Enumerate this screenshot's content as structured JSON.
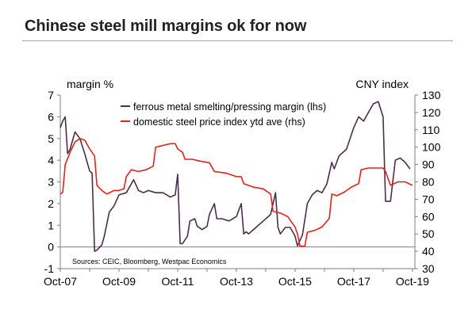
{
  "header": {
    "title": "Chinese steel mill margins ok for now"
  },
  "chart_data": {
    "type": "line",
    "title": "Chinese steel mill margins ok for now",
    "left_axis_label": "margin %",
    "right_axis_label": "CNY index",
    "left_ylim": [
      -1,
      7
    ],
    "right_ylim": [
      30,
      130
    ],
    "left_ticks": [
      "-1",
      "0",
      "1",
      "2",
      "3",
      "4",
      "5",
      "6",
      "7"
    ],
    "right_ticks": [
      "30",
      "40",
      "50",
      "60",
      "70",
      "80",
      "90",
      "100",
      "110",
      "120",
      "130"
    ],
    "x_range": [
      "2007-10",
      "2019-11"
    ],
    "x_tick_labels": [
      "Oct-07",
      "Oct-09",
      "Oct-11",
      "Oct-13",
      "Oct-15",
      "Oct-17",
      "Oct-19"
    ],
    "grid": false,
    "zero_line": true,
    "legend_position": "top-center",
    "source_note": "Sources: CEIC, Bloomberg, Westpac Economics",
    "colors": {
      "margin": "#4b2d4f",
      "price": "#e3221b",
      "axis": "#7f7f7f",
      "title": "#222222"
    },
    "series": [
      {
        "name": "ferrous metal smelting/pressing margin (lhs)",
        "axis": "left",
        "color": "#4b2d4f",
        "points": [
          [
            "2007-10",
            5.5
          ],
          [
            "2007-11",
            5.8
          ],
          [
            "2007-12",
            6.0
          ],
          [
            "2008-01",
            4.3
          ],
          [
            "2008-02",
            4.5
          ],
          [
            "2008-04",
            5.3
          ],
          [
            "2008-06",
            5.0
          ],
          [
            "2008-08",
            4.3
          ],
          [
            "2008-10",
            3.5
          ],
          [
            "2008-11",
            3.4
          ],
          [
            "2008-12",
            -0.2
          ],
          [
            "2009-01",
            -0.15
          ],
          [
            "2009-03",
            0.1
          ],
          [
            "2009-04",
            0.5
          ],
          [
            "2009-06",
            1.6
          ],
          [
            "2009-08",
            1.9
          ],
          [
            "2009-10",
            2.4
          ],
          [
            "2010-01",
            2.5
          ],
          [
            "2010-04",
            3.1
          ],
          [
            "2010-06",
            2.6
          ],
          [
            "2010-08",
            2.5
          ],
          [
            "2010-10",
            2.6
          ],
          [
            "2011-01",
            2.5
          ],
          [
            "2011-04",
            2.5
          ],
          [
            "2011-07",
            2.3
          ],
          [
            "2011-09",
            2.4
          ],
          [
            "2011-10",
            3.35
          ],
          [
            "2011-11",
            0.15
          ],
          [
            "2011-12",
            0.15
          ],
          [
            "2012-02",
            0.5
          ],
          [
            "2012-03",
            1.2
          ],
          [
            "2012-05",
            1.3
          ],
          [
            "2012-06",
            0.95
          ],
          [
            "2012-08",
            0.8
          ],
          [
            "2012-10",
            0.95
          ],
          [
            "2012-11",
            1.5
          ],
          [
            "2013-01",
            2.0
          ],
          [
            "2013-02",
            1.3
          ],
          [
            "2013-04",
            1.3
          ],
          [
            "2013-07",
            1.2
          ],
          [
            "2013-10",
            1.4
          ],
          [
            "2013-12",
            2.0
          ],
          [
            "2014-01",
            0.6
          ],
          [
            "2014-02",
            0.7
          ],
          [
            "2014-03",
            0.6
          ],
          [
            "2014-06",
            0.9
          ],
          [
            "2014-09",
            1.2
          ],
          [
            "2014-12",
            1.5
          ],
          [
            "2015-02",
            2.5
          ],
          [
            "2015-03",
            0.9
          ],
          [
            "2015-04",
            0.6
          ],
          [
            "2015-06",
            0.9
          ],
          [
            "2015-08",
            0.9
          ],
          [
            "2015-10",
            0.5
          ],
          [
            "2015-11",
            0.05
          ],
          [
            "2016-01",
            0.55
          ],
          [
            "2016-03",
            2.0
          ],
          [
            "2016-05",
            2.4
          ],
          [
            "2016-07",
            2.6
          ],
          [
            "2016-09",
            2.5
          ],
          [
            "2016-11",
            2.9
          ],
          [
            "2017-01",
            3.9
          ],
          [
            "2017-02",
            3.6
          ],
          [
            "2017-04",
            4.2
          ],
          [
            "2017-07",
            4.5
          ],
          [
            "2017-10",
            5.5
          ],
          [
            "2017-12",
            6.0
          ],
          [
            "2018-02",
            5.8
          ],
          [
            "2018-04",
            6.2
          ],
          [
            "2018-06",
            6.6
          ],
          [
            "2018-08",
            6.7
          ],
          [
            "2018-10",
            6.0
          ],
          [
            "2018-11",
            2.1
          ],
          [
            "2019-01",
            2.1
          ],
          [
            "2019-03",
            4.0
          ],
          [
            "2019-05",
            4.1
          ],
          [
            "2019-07",
            3.9
          ],
          [
            "2019-09",
            3.6
          ]
        ]
      },
      {
        "name": "domestic steel price index ytd ave (rhs)",
        "axis": "right",
        "color": "#e3221b",
        "points": [
          [
            "2007-10",
            73
          ],
          [
            "2007-11",
            74
          ],
          [
            "2007-12",
            90
          ],
          [
            "2008-02",
            97
          ],
          [
            "2008-04",
            103
          ],
          [
            "2008-06",
            105
          ],
          [
            "2008-08",
            104
          ],
          [
            "2008-10",
            99
          ],
          [
            "2008-12",
            95
          ],
          [
            "2009-01",
            78
          ],
          [
            "2009-03",
            75
          ],
          [
            "2009-05",
            73
          ],
          [
            "2009-08",
            75
          ],
          [
            "2009-10",
            75
          ],
          [
            "2009-12",
            76
          ],
          [
            "2010-01",
            83
          ],
          [
            "2010-03",
            87
          ],
          [
            "2010-06",
            86
          ],
          [
            "2010-09",
            87
          ],
          [
            "2010-12",
            89
          ],
          [
            "2011-01",
            100
          ],
          [
            "2011-04",
            101
          ],
          [
            "2011-07",
            102
          ],
          [
            "2011-09",
            102
          ],
          [
            "2011-10",
            99
          ],
          [
            "2011-12",
            97
          ],
          [
            "2012-01",
            93
          ],
          [
            "2012-04",
            93
          ],
          [
            "2012-07",
            92
          ],
          [
            "2012-11",
            91
          ],
          [
            "2013-01",
            86
          ],
          [
            "2013-06",
            85
          ],
          [
            "2013-10",
            83
          ],
          [
            "2013-12",
            83
          ],
          [
            "2014-01",
            79
          ],
          [
            "2014-05",
            77
          ],
          [
            "2014-09",
            76
          ],
          [
            "2014-12",
            73
          ],
          [
            "2015-01",
            63
          ],
          [
            "2015-04",
            62
          ],
          [
            "2015-07",
            60
          ],
          [
            "2015-10",
            54
          ],
          [
            "2015-11",
            50
          ],
          [
            "2015-12",
            43
          ],
          [
            "2016-02",
            43
          ],
          [
            "2016-03",
            51
          ],
          [
            "2016-06",
            52
          ],
          [
            "2016-09",
            54
          ],
          [
            "2016-12",
            59
          ],
          [
            "2017-01",
            73
          ],
          [
            "2017-03",
            72
          ],
          [
            "2017-06",
            74
          ],
          [
            "2017-09",
            77
          ],
          [
            "2017-12",
            79
          ],
          [
            "2018-01",
            87
          ],
          [
            "2018-04",
            88
          ],
          [
            "2018-07",
            88
          ],
          [
            "2018-10",
            88
          ],
          [
            "2018-11",
            86
          ],
          [
            "2019-01",
            78
          ],
          [
            "2019-04",
            80
          ],
          [
            "2019-07",
            80
          ],
          [
            "2019-10",
            78
          ]
        ]
      }
    ]
  }
}
